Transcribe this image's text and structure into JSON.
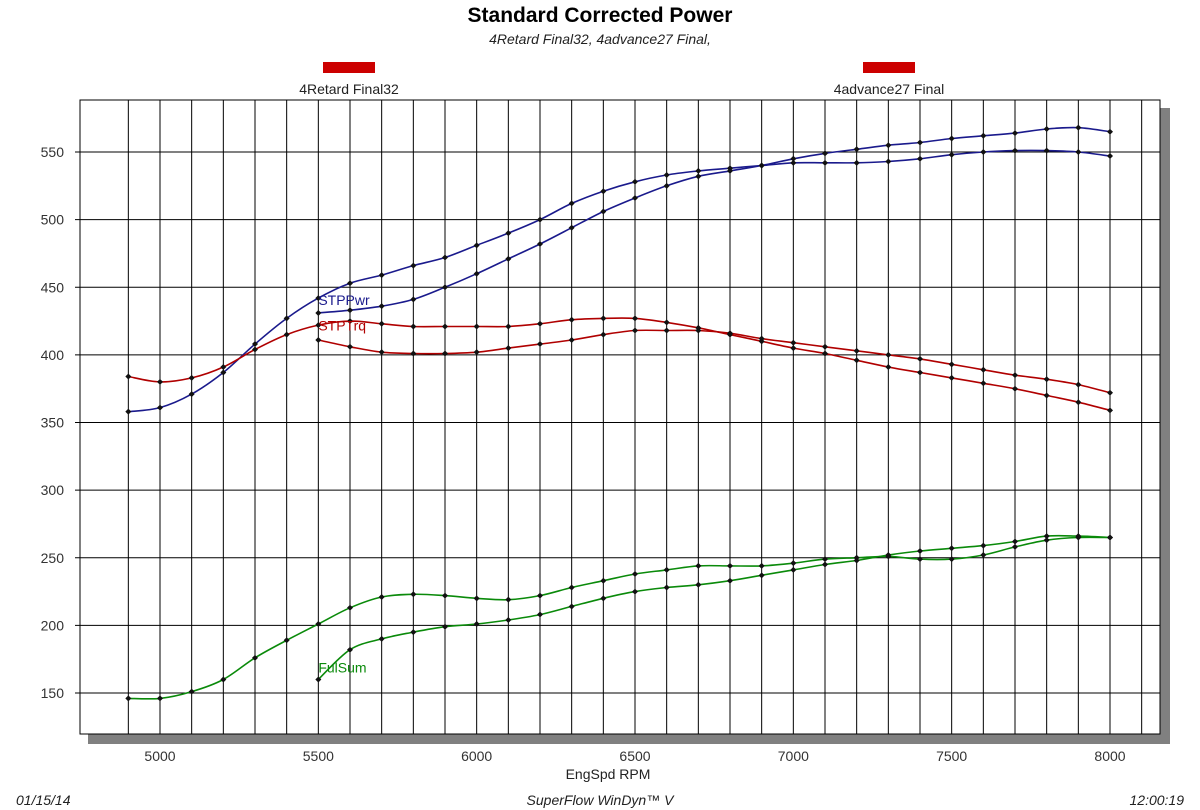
{
  "header": {
    "title": "Standard Corrected Power",
    "subtitle": "4Retard Final32, 4advance27 Final,"
  },
  "footer": {
    "date": "01/15/14",
    "software": "SuperFlow WinDyn™ V",
    "time": "12:00:19"
  },
  "colors": {
    "power": "#1a1a8c",
    "torque": "#b00000",
    "fuel": "#0a8a0a",
    "legend_swatch": "#cc0000",
    "grid": "#000000",
    "shadow": "#808080"
  },
  "chart_data": {
    "type": "line",
    "title": "Standard Corrected Power",
    "subtitle": "4Retard Final32, 4advance27 Final,",
    "xlabel": "EngSpd RPM",
    "ylabel": "",
    "xlim": [
      4800,
      8050
    ],
    "ylim": [
      125,
      580
    ],
    "x_ticks": [
      5000,
      5500,
      6000,
      6500,
      7000,
      7500,
      8000
    ],
    "y_ticks": [
      150,
      200,
      250,
      300,
      350,
      400,
      450,
      500,
      550
    ],
    "grid": true,
    "legend": [
      {
        "name": "4Retard Final32",
        "position": "top-left"
      },
      {
        "name": "4advance27 Final",
        "position": "top-right"
      }
    ],
    "series_labels": [
      {
        "text": "STPPwr",
        "x": 5500,
        "y": 437,
        "color_key": "power"
      },
      {
        "text": "STPTrq",
        "x": 5500,
        "y": 418,
        "color_key": "torque"
      },
      {
        "text": "FulSum",
        "x": 5500,
        "y": 165,
        "color_key": "fuel"
      }
    ],
    "series": [
      {
        "run": "4Retard Final32",
        "quantity": "STPPwr",
        "color_key": "power",
        "markers": true,
        "x": [
          4900,
          5000,
          5100,
          5200,
          5300,
          5400,
          5500,
          5600,
          5700,
          5800,
          5900,
          6000,
          6100,
          6200,
          6300,
          6400,
          6500,
          6600,
          6700,
          6800,
          6900,
          7000,
          7100,
          7200,
          7300,
          7400,
          7500,
          7600,
          7700,
          7800,
          7900,
          8000
        ],
        "y": [
          358,
          361,
          371,
          387,
          408,
          427,
          442,
          453,
          459,
          466,
          472,
          481,
          490,
          500,
          512,
          521,
          528,
          533,
          536,
          538,
          540,
          542,
          542,
          542,
          543,
          545,
          548,
          550,
          551,
          551,
          550,
          547
        ]
      },
      {
        "run": "4Retard Final32",
        "quantity": "STPTrq",
        "color_key": "torque",
        "markers": true,
        "x": [
          4900,
          5000,
          5100,
          5200,
          5300,
          5400,
          5500,
          5600,
          5700,
          5800,
          5900,
          6000,
          6100,
          6200,
          6300,
          6400,
          6500,
          6600,
          6700,
          6800,
          6900,
          7000,
          7100,
          7200,
          7300,
          7400,
          7500,
          7600,
          7700,
          7800,
          7900,
          8000
        ],
        "y": [
          384,
          380,
          383,
          391,
          404,
          415,
          422,
          425,
          423,
          421,
          421,
          421,
          421,
          423,
          426,
          427,
          427,
          424,
          420,
          415,
          410,
          405,
          401,
          396,
          391,
          387,
          383,
          379,
          375,
          370,
          365,
          359
        ]
      },
      {
        "run": "4Retard Final32",
        "quantity": "FulSum",
        "color_key": "fuel",
        "markers": true,
        "x": [
          4900,
          5000,
          5100,
          5200,
          5300,
          5400,
          5500,
          5600,
          5700,
          5800,
          5900,
          6000,
          6100,
          6200,
          6300,
          6400,
          6500,
          6600,
          6700,
          6800,
          6900,
          7000,
          7100,
          7200,
          7300,
          7400,
          7500,
          7600,
          7700,
          7800,
          7900,
          8000
        ],
        "y": [
          146,
          146,
          151,
          160,
          176,
          189,
          201,
          213,
          221,
          223,
          222,
          220,
          219,
          222,
          228,
          233,
          238,
          241,
          244,
          244,
          244,
          246,
          249,
          250,
          251,
          249,
          249,
          252,
          258,
          263,
          265,
          265
        ]
      },
      {
        "run": "4advance27 Final",
        "quantity": "STPPwr",
        "color_key": "power",
        "markers": false,
        "x": [
          5500,
          5600,
          5700,
          5800,
          5900,
          6000,
          6100,
          6200,
          6300,
          6400,
          6500,
          6600,
          6700,
          6800,
          6900,
          7000,
          7100,
          7200,
          7300,
          7400,
          7500,
          7600,
          7700,
          7800,
          7900,
          8000
        ],
        "y": [
          431,
          433,
          436,
          441,
          450,
          460,
          471,
          482,
          494,
          506,
          516,
          525,
          532,
          536,
          540,
          545,
          549,
          552,
          555,
          557,
          560,
          562,
          564,
          567,
          568,
          565
        ]
      },
      {
        "run": "4advance27 Final",
        "quantity": "STPTrq",
        "color_key": "torque",
        "markers": false,
        "x": [
          5500,
          5600,
          5700,
          5800,
          5900,
          6000,
          6100,
          6200,
          6300,
          6400,
          6500,
          6600,
          6700,
          6800,
          6900,
          7000,
          7100,
          7200,
          7300,
          7400,
          7500,
          7600,
          7700,
          7800,
          7900,
          8000
        ],
        "y": [
          411,
          406,
          402,
          401,
          401,
          402,
          405,
          408,
          411,
          415,
          418,
          418,
          418,
          416,
          412,
          409,
          406,
          403,
          400,
          397,
          393,
          389,
          385,
          382,
          378,
          372
        ]
      },
      {
        "run": "4advance27 Final",
        "quantity": "FulSum",
        "color_key": "fuel",
        "markers": false,
        "x": [
          5500,
          5600,
          5700,
          5800,
          5900,
          6000,
          6100,
          6200,
          6300,
          6400,
          6500,
          6600,
          6700,
          6800,
          6900,
          7000,
          7100,
          7200,
          7300,
          7400,
          7500,
          7600,
          7700,
          7800,
          7900,
          8000
        ],
        "y": [
          160,
          182,
          190,
          195,
          199,
          201,
          204,
          208,
          214,
          220,
          225,
          228,
          230,
          233,
          237,
          241,
          245,
          248,
          252,
          255,
          257,
          259,
          262,
          266,
          266,
          265
        ]
      }
    ]
  }
}
